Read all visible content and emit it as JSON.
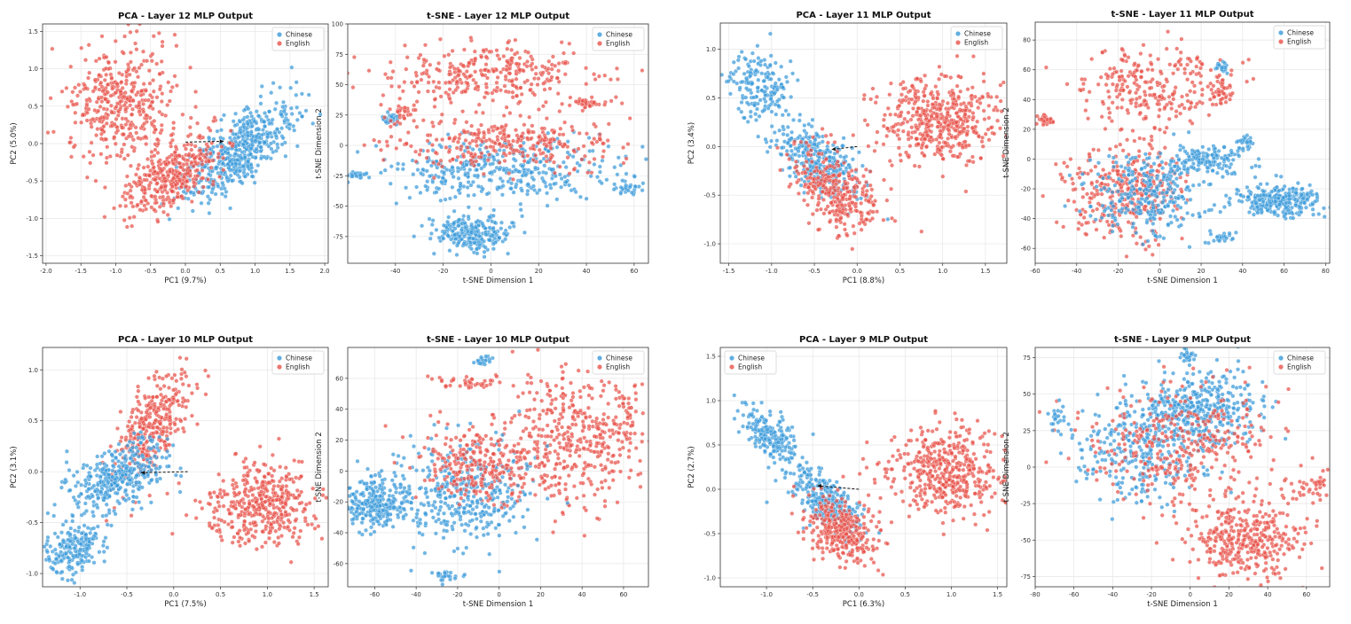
{
  "colors": {
    "chinese": "#3a9ad9",
    "english": "#e8524a"
  },
  "chart_data": [
    {
      "id": "p0",
      "type": "scatter",
      "title": "PCA - Layer 12 MLP Output",
      "xlabel": "PC1 (9.7%)",
      "ylabel": "PC2 (5.0%)",
      "xlim": [
        -2.05,
        2.05
      ],
      "ylim": [
        -1.6,
        1.6
      ],
      "xticks": [
        "-2.0",
        "-1.5",
        "-1.0",
        "-0.5",
        "0.0",
        "0.5",
        "1.0",
        "1.5",
        "2.0"
      ],
      "yticks": [
        "-1.5",
        "-1.0",
        "-0.5",
        "0.0",
        "0.5",
        "1.0",
        "1.5"
      ],
      "legend": {
        "position": "top-right",
        "entries": [
          "Chinese",
          "English"
        ]
      },
      "grid": true,
      "arrow": {
        "from": [
          0.0,
          0.02
        ],
        "to": [
          0.55,
          0.03
        ]
      },
      "clusters": [
        {
          "series": "Chinese",
          "n": 520,
          "center": [
            0.75,
            -0.1
          ],
          "spread": [
            0.5,
            0.18
          ],
          "rot": 38
        },
        {
          "series": "English",
          "n": 360,
          "center": [
            -0.2,
            -0.45
          ],
          "spread": [
            0.4,
            0.18
          ],
          "rot": 38
        },
        {
          "series": "English",
          "n": 420,
          "center": [
            -0.9,
            0.5
          ],
          "spread": [
            0.4,
            0.42
          ],
          "rot": 0
        }
      ]
    },
    {
      "id": "p1",
      "type": "scatter",
      "title": "t-SNE - Layer 12 MLP Output",
      "xlabel": "t-SNE Dimension 1",
      "ylabel": "t-SNE Dimension 2",
      "xlim": [
        -60,
        66
      ],
      "ylim": [
        -97,
        100
      ],
      "xticks": [
        "-40",
        "-20",
        "0",
        "20",
        "40",
        "60"
      ],
      "yticks": [
        "-75",
        "-50",
        "-25",
        "0",
        "25",
        "50",
        "75",
        "100"
      ],
      "legend": {
        "position": "top-right",
        "entries": [
          "Chinese",
          "English"
        ]
      },
      "grid": true,
      "clusters": [
        {
          "series": "English",
          "n": 320,
          "center": [
            0,
            58
          ],
          "spread": [
            22,
            13
          ],
          "rot": 0
        },
        {
          "series": "Chinese",
          "n": 230,
          "center": [
            -8,
            -72
          ],
          "spread": [
            8,
            8
          ],
          "rot": 0
        },
        {
          "series": "Chinese",
          "n": 380,
          "center": [
            5,
            -20
          ],
          "spread": [
            24,
            13
          ],
          "rot": 0
        },
        {
          "series": "English",
          "n": 300,
          "center": [
            5,
            2
          ],
          "spread": [
            24,
            10
          ],
          "rot": 0
        },
        {
          "series": "Chinese",
          "n": 30,
          "center": [
            -42,
            22
          ],
          "spread": [
            2,
            3
          ],
          "rot": 0
        },
        {
          "series": "Chinese",
          "n": 25,
          "center": [
            -56,
            -25
          ],
          "spread": [
            2.5,
            2
          ],
          "rot": 0
        },
        {
          "series": "English",
          "n": 35,
          "center": [
            42,
            35
          ],
          "spread": [
            4,
            2
          ],
          "rot": 0
        },
        {
          "series": "English",
          "n": 30,
          "center": [
            -38,
            26
          ],
          "spread": [
            3,
            4
          ],
          "rot": 0
        },
        {
          "series": "Chinese",
          "n": 25,
          "center": [
            58,
            -35
          ],
          "spread": [
            3,
            2
          ],
          "rot": 0
        }
      ]
    },
    {
      "id": "p2",
      "type": "scatter",
      "title": "PCA - Layer 11 MLP Output",
      "xlabel": "PC1 (8.8%)",
      "ylabel": "PC2 (3.4%)",
      "xlim": [
        -1.6,
        1.75
      ],
      "ylim": [
        -1.2,
        1.27
      ],
      "xticks": [
        "-1.5",
        "-1.0",
        "-0.5",
        "0.0",
        "0.5",
        "1.0",
        "1.5"
      ],
      "yticks": [
        "-1.0",
        "-0.5",
        "0.0",
        "0.5",
        "1.0"
      ],
      "legend": {
        "position": "top-right",
        "entries": [
          "Chinese",
          "English"
        ]
      },
      "grid": true,
      "arrow": {
        "from": [
          0.0,
          0.0
        ],
        "to": [
          -0.3,
          -0.03
        ]
      },
      "clusters": [
        {
          "series": "English",
          "n": 480,
          "center": [
            0.95,
            0.28
          ],
          "spread": [
            0.35,
            0.22
          ],
          "rot": 0
        },
        {
          "series": "Chinese",
          "n": 180,
          "center": [
            -1.1,
            0.6
          ],
          "spread": [
            0.22,
            0.16
          ],
          "rot": -55
        },
        {
          "series": "Chinese",
          "n": 320,
          "center": [
            -0.45,
            -0.15
          ],
          "spread": [
            0.3,
            0.13
          ],
          "rot": -40
        },
        {
          "series": "English",
          "n": 320,
          "center": [
            -0.25,
            -0.45
          ],
          "spread": [
            0.3,
            0.16
          ],
          "rot": -45
        }
      ]
    },
    {
      "id": "p3",
      "type": "scatter",
      "title": "t-SNE - Layer 11 MLP Output",
      "xlabel": "t-SNE Dimension 1",
      "ylabel": "t-SNE Dimension 2",
      "xlim": [
        -60,
        82
      ],
      "ylim": [
        -70,
        92
      ],
      "xticks": [
        "-60",
        "-40",
        "-20",
        "0",
        "20",
        "40",
        "60",
        "80"
      ],
      "yticks": [
        "-60",
        "-40",
        "-20",
        "0",
        "20",
        "40",
        "60",
        "80"
      ],
      "legend": {
        "position": "top-right",
        "entries": [
          "Chinese",
          "English"
        ]
      },
      "grid": true,
      "clusters": [
        {
          "series": "English",
          "n": 260,
          "center": [
            -2,
            50
          ],
          "spread": [
            18,
            14
          ],
          "rot": 0
        },
        {
          "series": "English",
          "n": 360,
          "center": [
            -15,
            -22
          ],
          "spread": [
            14,
            16
          ],
          "rot": 0
        },
        {
          "series": "Chinese",
          "n": 300,
          "center": [
            -5,
            -25
          ],
          "spread": [
            15,
            15
          ],
          "rot": 0
        },
        {
          "series": "Chinese",
          "n": 280,
          "center": [
            58,
            -28
          ],
          "spread": [
            10,
            5
          ],
          "rot": 0
        },
        {
          "series": "Chinese",
          "n": 140,
          "center": [
            25,
            0
          ],
          "spread": [
            10,
            6
          ],
          "rot": 0
        },
        {
          "series": "English",
          "n": 35,
          "center": [
            -55,
            26
          ],
          "spread": [
            2,
            2
          ],
          "rot": 0
        },
        {
          "series": "Chinese",
          "n": 25,
          "center": [
            30,
            62
          ],
          "spread": [
            2,
            2
          ],
          "rot": 0
        },
        {
          "series": "English",
          "n": 40,
          "center": [
            30,
            44
          ],
          "spread": [
            3,
            6
          ],
          "rot": 0
        },
        {
          "series": "Chinese",
          "n": 25,
          "center": [
            42,
            12
          ],
          "spread": [
            2,
            2
          ],
          "rot": 0
        },
        {
          "series": "Chinese",
          "n": 25,
          "center": [
            30,
            -53
          ],
          "spread": [
            3,
            2
          ],
          "rot": 0
        }
      ]
    },
    {
      "id": "p4",
      "type": "scatter",
      "title": "PCA - Layer 10 MLP Output",
      "xlabel": "PC1 (7.5%)",
      "ylabel": "PC2 (3.1%)",
      "xlim": [
        -1.4,
        1.65
      ],
      "ylim": [
        -1.13,
        1.22
      ],
      "xticks": [
        "-1.0",
        "-0.5",
        "0.0",
        "0.5",
        "1.0",
        "1.5"
      ],
      "yticks": [
        "-1.0",
        "-0.5",
        "0.0",
        "0.5",
        "1.0"
      ],
      "legend": {
        "position": "top-right",
        "entries": [
          "Chinese",
          "English"
        ]
      },
      "grid": true,
      "arrow": {
        "from": [
          0.15,
          0.0
        ],
        "to": [
          -0.35,
          -0.01
        ]
      },
      "clusters": [
        {
          "series": "English",
          "n": 420,
          "center": [
            0.95,
            -0.33
          ],
          "spread": [
            0.3,
            0.2
          ],
          "rot": 0
        },
        {
          "series": "English",
          "n": 320,
          "center": [
            -0.22,
            0.45
          ],
          "spread": [
            0.14,
            0.3
          ],
          "rot": -25
        },
        {
          "series": "Chinese",
          "n": 360,
          "center": [
            -0.6,
            -0.05
          ],
          "spread": [
            0.3,
            0.14
          ],
          "rot": 25
        },
        {
          "series": "Chinese",
          "n": 200,
          "center": [
            -1.05,
            -0.75
          ],
          "spread": [
            0.16,
            0.1
          ],
          "rot": 40
        }
      ]
    },
    {
      "id": "p5",
      "type": "scatter",
      "title": "t-SNE - Layer 10 MLP Output",
      "xlabel": "t-SNE Dimension 1",
      "ylabel": "t-SNE Dimension 2",
      "xlim": [
        -73,
        72
      ],
      "ylim": [
        -75,
        80
      ],
      "xticks": [
        "-60",
        "-40",
        "-20",
        "0",
        "20",
        "40",
        "60"
      ],
      "yticks": [
        "-60",
        "-40",
        "-20",
        "0",
        "20",
        "40",
        "60"
      ],
      "legend": {
        "position": "top-right",
        "entries": [
          "Chinese",
          "English"
        ]
      },
      "grid": true,
      "clusters": [
        {
          "series": "English",
          "n": 420,
          "center": [
            35,
            20
          ],
          "spread": [
            18,
            22
          ],
          "rot": 0
        },
        {
          "series": "Chinese",
          "n": 260,
          "center": [
            -60,
            -22
          ],
          "spread": [
            8,
            8
          ],
          "rot": 0
        },
        {
          "series": "Chinese",
          "n": 380,
          "center": [
            -15,
            -15
          ],
          "spread": [
            16,
            17
          ],
          "rot": 0
        },
        {
          "series": "English",
          "n": 260,
          "center": [
            -10,
            5
          ],
          "spread": [
            15,
            12
          ],
          "rot": 0
        },
        {
          "series": "Chinese",
          "n": 20,
          "center": [
            -8,
            71
          ],
          "spread": [
            2,
            1.5
          ],
          "rot": 0
        },
        {
          "series": "English",
          "n": 40,
          "center": [
            -15,
            57
          ],
          "spread": [
            10,
            3
          ],
          "rot": 0
        },
        {
          "series": "English",
          "n": 30,
          "center": [
            62,
            40
          ],
          "spread": [
            3,
            6
          ],
          "rot": 0
        },
        {
          "series": "Chinese",
          "n": 25,
          "center": [
            -25,
            -68
          ],
          "spread": [
            3,
            2
          ],
          "rot": 0
        }
      ]
    },
    {
      "id": "p6",
      "type": "scatter",
      "title": "PCA - Layer 9 MLP Output",
      "xlabel": "PC1 (6.3%)",
      "ylabel": "PC2 (2.7%)",
      "xlim": [
        -1.5,
        1.6
      ],
      "ylim": [
        -1.1,
        1.6
      ],
      "xticks": [
        "-1.0",
        "-0.5",
        "0.0",
        "0.5",
        "1.0",
        "1.5"
      ],
      "yticks": [
        "-1.0",
        "-0.5",
        "0.0",
        "0.5",
        "1.0",
        "1.5"
      ],
      "legend": {
        "position": "top-left",
        "entries": [
          "Chinese",
          "English"
        ]
      },
      "grid": true,
      "arrow": {
        "from": [
          0.0,
          0.0
        ],
        "to": [
          -0.45,
          0.04
        ]
      },
      "clusters": [
        {
          "series": "English",
          "n": 460,
          "center": [
            0.95,
            0.2
          ],
          "spread": [
            0.3,
            0.25
          ],
          "rot": 0
        },
        {
          "series": "Chinese",
          "n": 200,
          "center": [
            -0.95,
            0.6
          ],
          "spread": [
            0.2,
            0.1
          ],
          "rot": -45
        },
        {
          "series": "Chinese",
          "n": 320,
          "center": [
            -0.35,
            -0.15
          ],
          "spread": [
            0.25,
            0.12
          ],
          "rot": -45
        },
        {
          "series": "English",
          "n": 340,
          "center": [
            -0.2,
            -0.45
          ],
          "spread": [
            0.22,
            0.15
          ],
          "rot": -40
        }
      ]
    },
    {
      "id": "p7",
      "type": "scatter",
      "title": "t-SNE - Layer 9 MLP Output",
      "xlabel": "t-SNE Dimension 1",
      "ylabel": "t-SNE Dimension 2",
      "xlim": [
        -80,
        72
      ],
      "ylim": [
        -82,
        82
      ],
      "xticks": [
        "-80",
        "-60",
        "-40",
        "-20",
        "0",
        "20",
        "40",
        "60"
      ],
      "yticks": [
        "-75",
        "-50",
        "-25",
        "0",
        "25",
        "50",
        "75"
      ],
      "legend": {
        "position": "top-right",
        "entries": [
          "Chinese",
          "English"
        ]
      },
      "grid": true,
      "clusters": [
        {
          "series": "English",
          "n": 380,
          "center": [
            28,
            -50
          ],
          "spread": [
            15,
            13
          ],
          "rot": 0
        },
        {
          "series": "Chinese",
          "n": 380,
          "center": [
            5,
            40
          ],
          "spread": [
            16,
            12
          ],
          "rot": 0
        },
        {
          "series": "Chinese",
          "n": 300,
          "center": [
            -25,
            10
          ],
          "spread": [
            17,
            18
          ],
          "rot": 0
        },
        {
          "series": "English",
          "n": 340,
          "center": [
            -8,
            15
          ],
          "spread": [
            25,
            20
          ],
          "rot": 0
        },
        {
          "series": "Chinese",
          "n": 25,
          "center": [
            -1,
            76
          ],
          "spread": [
            2,
            2
          ],
          "rot": 0
        },
        {
          "series": "English",
          "n": 30,
          "center": [
            60,
            -15
          ],
          "spread": [
            6,
            8
          ],
          "rot": 0
        },
        {
          "series": "Chinese",
          "n": 20,
          "center": [
            -68,
            35
          ],
          "spread": [
            3,
            5
          ],
          "rot": 0
        },
        {
          "series": "English",
          "n": 15,
          "center": [
            66,
            -11
          ],
          "spread": [
            1.5,
            1.5
          ],
          "rot": 0
        }
      ]
    }
  ]
}
